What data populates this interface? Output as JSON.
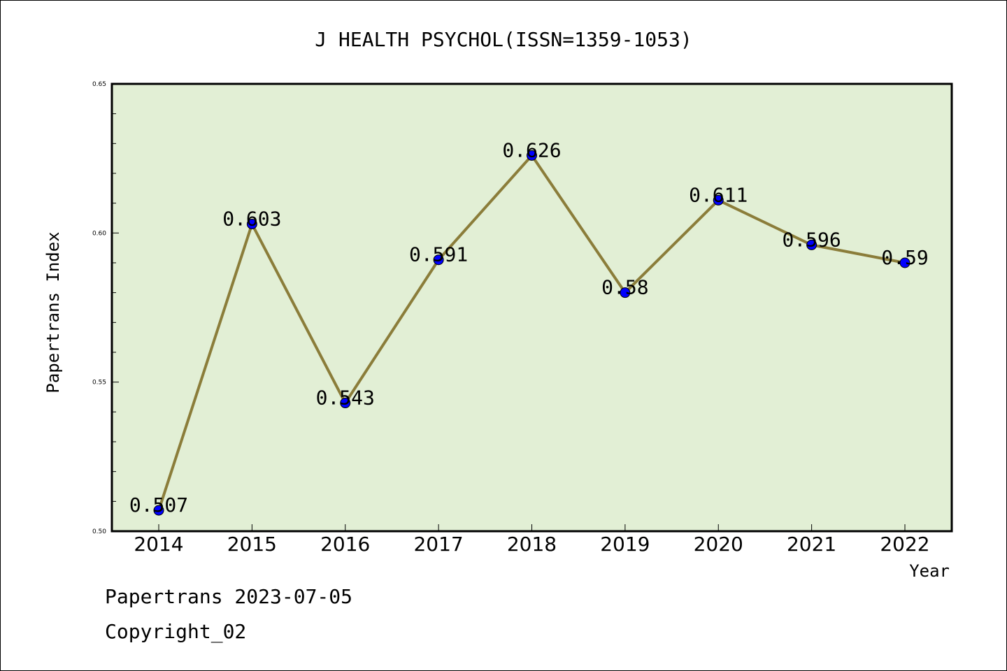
{
  "chart_data": {
    "type": "line",
    "title": "J HEALTH PSYCHOL(ISSN=1359-1053)",
    "xlabel": "Year",
    "ylabel": "Papertrans Index",
    "categories": [
      "2014",
      "2015",
      "2016",
      "2017",
      "2018",
      "2019",
      "2020",
      "2021",
      "2022"
    ],
    "values": [
      0.507,
      0.603,
      0.543,
      0.591,
      0.626,
      0.58,
      0.611,
      0.596,
      0.59
    ],
    "data_labels": [
      "0.507",
      "0.603",
      "0.543",
      "0.591",
      "0.626",
      "0.58",
      "0.611",
      "0.596",
      "0.59"
    ],
    "ylim": [
      0.5,
      0.65
    ],
    "yticks": [
      "0.50",
      "0.55",
      "0.60",
      "0.65"
    ],
    "grid": false,
    "legend": "none",
    "colors": {
      "plot_background": "#e2efd5",
      "line": "#8b7d3a",
      "marker": "#0000ff",
      "frame": "#000000"
    }
  },
  "footer": {
    "line1": "Papertrans 2023-07-05",
    "line2": "Copyright_02"
  }
}
